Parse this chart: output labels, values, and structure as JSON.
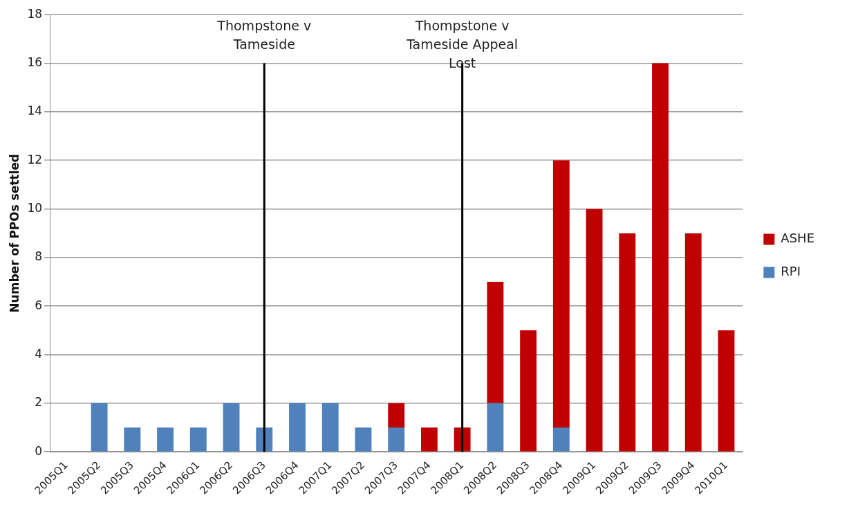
{
  "chart_data": {
    "type": "bar",
    "stacked": true,
    "ylabel": "Number of PPOs settled",
    "categories": [
      "2005Q1",
      "2005Q2",
      "2005Q3",
      "2005Q4",
      "2006Q1",
      "2006Q2",
      "2006Q3",
      "2006Q4",
      "2007Q1",
      "2007Q2",
      "2007Q3",
      "2007Q4",
      "2008Q1",
      "2008Q2",
      "2008Q3",
      "2008Q4",
      "2009Q1",
      "2009Q2",
      "2009Q3",
      "2009Q4",
      "2010Q1"
    ],
    "series": [
      {
        "name": "RPI",
        "color": "#4f81bd",
        "values": [
          0,
          2,
          1,
          1,
          1,
          2,
          1,
          2,
          2,
          1,
          1,
          0,
          0,
          2,
          0,
          1,
          0,
          0,
          0,
          0,
          0
        ]
      },
      {
        "name": "ASHE",
        "color": "#c00000",
        "values": [
          0,
          0,
          0,
          0,
          0,
          0,
          0,
          0,
          0,
          0,
          1,
          1,
          1,
          5,
          5,
          11,
          10,
          9,
          16,
          9,
          5
        ]
      }
    ],
    "ylim": [
      0,
      18
    ],
    "yticks": [
      0,
      2,
      4,
      6,
      8,
      10,
      12,
      14,
      16,
      18
    ],
    "grid": "y",
    "legend": "right",
    "ref_lines": [
      {
        "axis": "x",
        "value": "2006Q3",
        "label": "Thompstone v Tameside",
        "color": "#000000"
      },
      {
        "axis": "x",
        "value": "2008Q1",
        "label": "Thompstone v Tameside Appeal Lost",
        "color": "#000000"
      }
    ]
  }
}
